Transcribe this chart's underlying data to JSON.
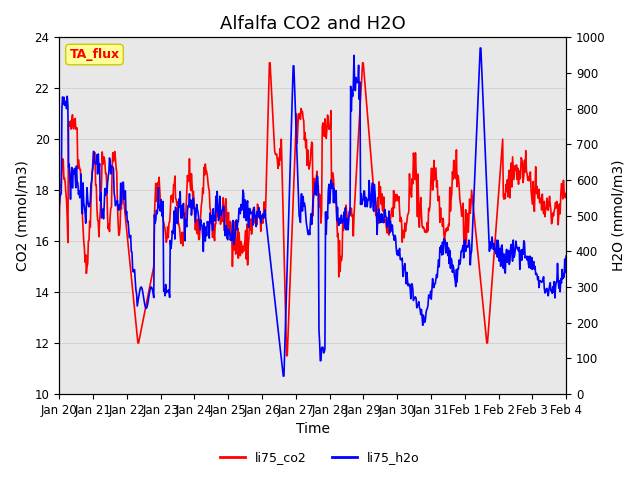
{
  "title": "Alfalfa CO2 and H2O",
  "xlabel": "Time",
  "ylabel_left": "CO2 (mmol/m3)",
  "ylabel_right": "H2O (mmol/m3)",
  "ylim_left": [
    10,
    24
  ],
  "ylim_right": [
    0,
    1000
  ],
  "yticks_left": [
    10,
    12,
    14,
    16,
    18,
    20,
    22,
    24
  ],
  "yticks_right": [
    0,
    100,
    200,
    300,
    400,
    500,
    600,
    700,
    800,
    900,
    1000
  ],
  "xtick_labels": [
    "Jan 20",
    "Jan 21",
    "Jan 22",
    "Jan 23",
    "Jan 24",
    "Jan 25",
    "Jan 26",
    "Jan 27",
    "Jan 28",
    "Jan 29",
    "Jan 30",
    "Jan 31",
    "Feb 1",
    "Feb 2",
    "Feb 3",
    "Feb 4"
  ],
  "color_co2": "#FF0000",
  "color_h2o": "#0000FF",
  "legend_co2": "li75_co2",
  "legend_h2o": "li75_h2o",
  "annotation_text": "TA_flux",
  "annotation_color": "#FF0000",
  "annotation_bg": "#FFFF99",
  "plot_bg_color": "#E8E8E8",
  "title_fontsize": 13,
  "axis_fontsize": 10,
  "tick_fontsize": 8.5,
  "legend_fontsize": 9,
  "linewidth": 1.2
}
